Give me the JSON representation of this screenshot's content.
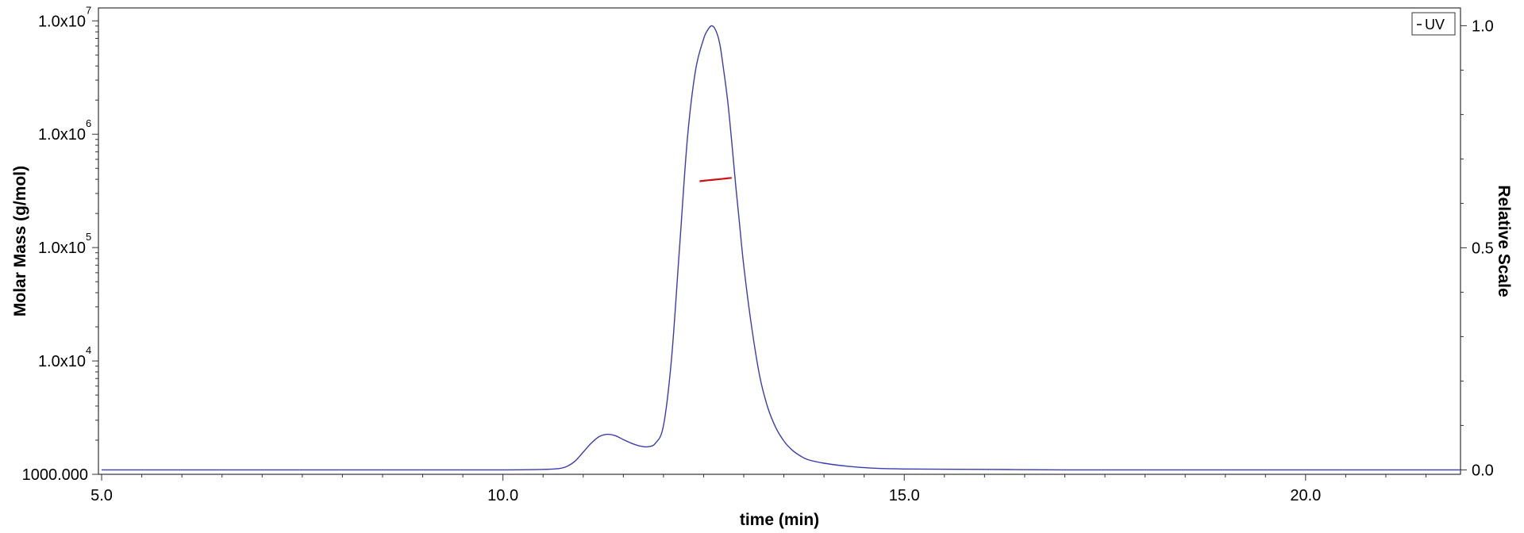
{
  "chart_data": {
    "type": "line",
    "title": "",
    "xlabel": "time (min)",
    "ylabel": "Molar Mass (g/mol)",
    "y2label": "Relative Scale",
    "xlim": [
      4.96,
      21.93
    ],
    "ylim_log": [
      1000,
      13000000
    ],
    "y2lim": [
      -0.01,
      1.04
    ],
    "y_scale": "log",
    "grid": false,
    "legend_position": "top-right",
    "x_ticks": [
      {
        "value": 5.0,
        "label": "5.0"
      },
      {
        "value": 10.0,
        "label": "10.0"
      },
      {
        "value": 15.0,
        "label": "15.0"
      },
      {
        "value": 20.0,
        "label": "20.0"
      }
    ],
    "y_ticks": [
      {
        "value": 1000,
        "label": "1000.000",
        "base": "",
        "exp": ""
      },
      {
        "value": 10000,
        "label": "",
        "base": "1.0x10",
        "exp": "4"
      },
      {
        "value": 100000,
        "label": "",
        "base": "1.0x10",
        "exp": "5"
      },
      {
        "value": 1000000,
        "label": "",
        "base": "1.0x10",
        "exp": "6"
      },
      {
        "value": 10000000,
        "label": "",
        "base": "1.0x10",
        "exp": "7"
      }
    ],
    "y2_ticks": [
      {
        "value": 0.0,
        "label": "0.0"
      },
      {
        "value": 0.5,
        "label": "0.5"
      },
      {
        "value": 1.0,
        "label": "1.0"
      }
    ],
    "series": [
      {
        "name": "UV",
        "axis": "right",
        "color": "#3b3bb3",
        "x": [
          5.0,
          6.0,
          7.0,
          8.0,
          9.0,
          10.0,
          10.5,
          10.7,
          10.8,
          10.9,
          11.0,
          11.1,
          11.2,
          11.3,
          11.4,
          11.5,
          11.6,
          11.7,
          11.8,
          11.9,
          12.0,
          12.1,
          12.2,
          12.3,
          12.4,
          12.5,
          12.55,
          12.6,
          12.65,
          12.7,
          12.75,
          12.8,
          12.85,
          12.9,
          12.95,
          13.0,
          13.1,
          13.2,
          13.3,
          13.4,
          13.5,
          13.6,
          13.7,
          13.8,
          14.0,
          14.3,
          14.6,
          15.0,
          16.0,
          17.0,
          18.0,
          19.0,
          20.0,
          21.0,
          21.93
        ],
        "y": [
          0.0,
          0.0,
          0.0,
          0.0,
          0.0,
          0.0,
          0.001,
          0.003,
          0.008,
          0.02,
          0.04,
          0.06,
          0.075,
          0.08,
          0.077,
          0.068,
          0.06,
          0.054,
          0.052,
          0.06,
          0.1,
          0.25,
          0.5,
          0.75,
          0.9,
          0.97,
          0.99,
          1.0,
          0.99,
          0.96,
          0.9,
          0.83,
          0.74,
          0.64,
          0.55,
          0.46,
          0.32,
          0.21,
          0.14,
          0.095,
          0.065,
          0.045,
          0.032,
          0.023,
          0.015,
          0.008,
          0.004,
          0.002,
          0.001,
          0.0,
          0.0,
          0.0,
          0.0,
          0.0,
          0.0
        ]
      },
      {
        "name": "Molar Mass",
        "axis": "left",
        "color": "#cc1111",
        "x": [
          12.45,
          12.55,
          12.65,
          12.75,
          12.85
        ],
        "y": [
          384000,
          392000,
          398000,
          405000,
          412000
        ]
      }
    ]
  }
}
